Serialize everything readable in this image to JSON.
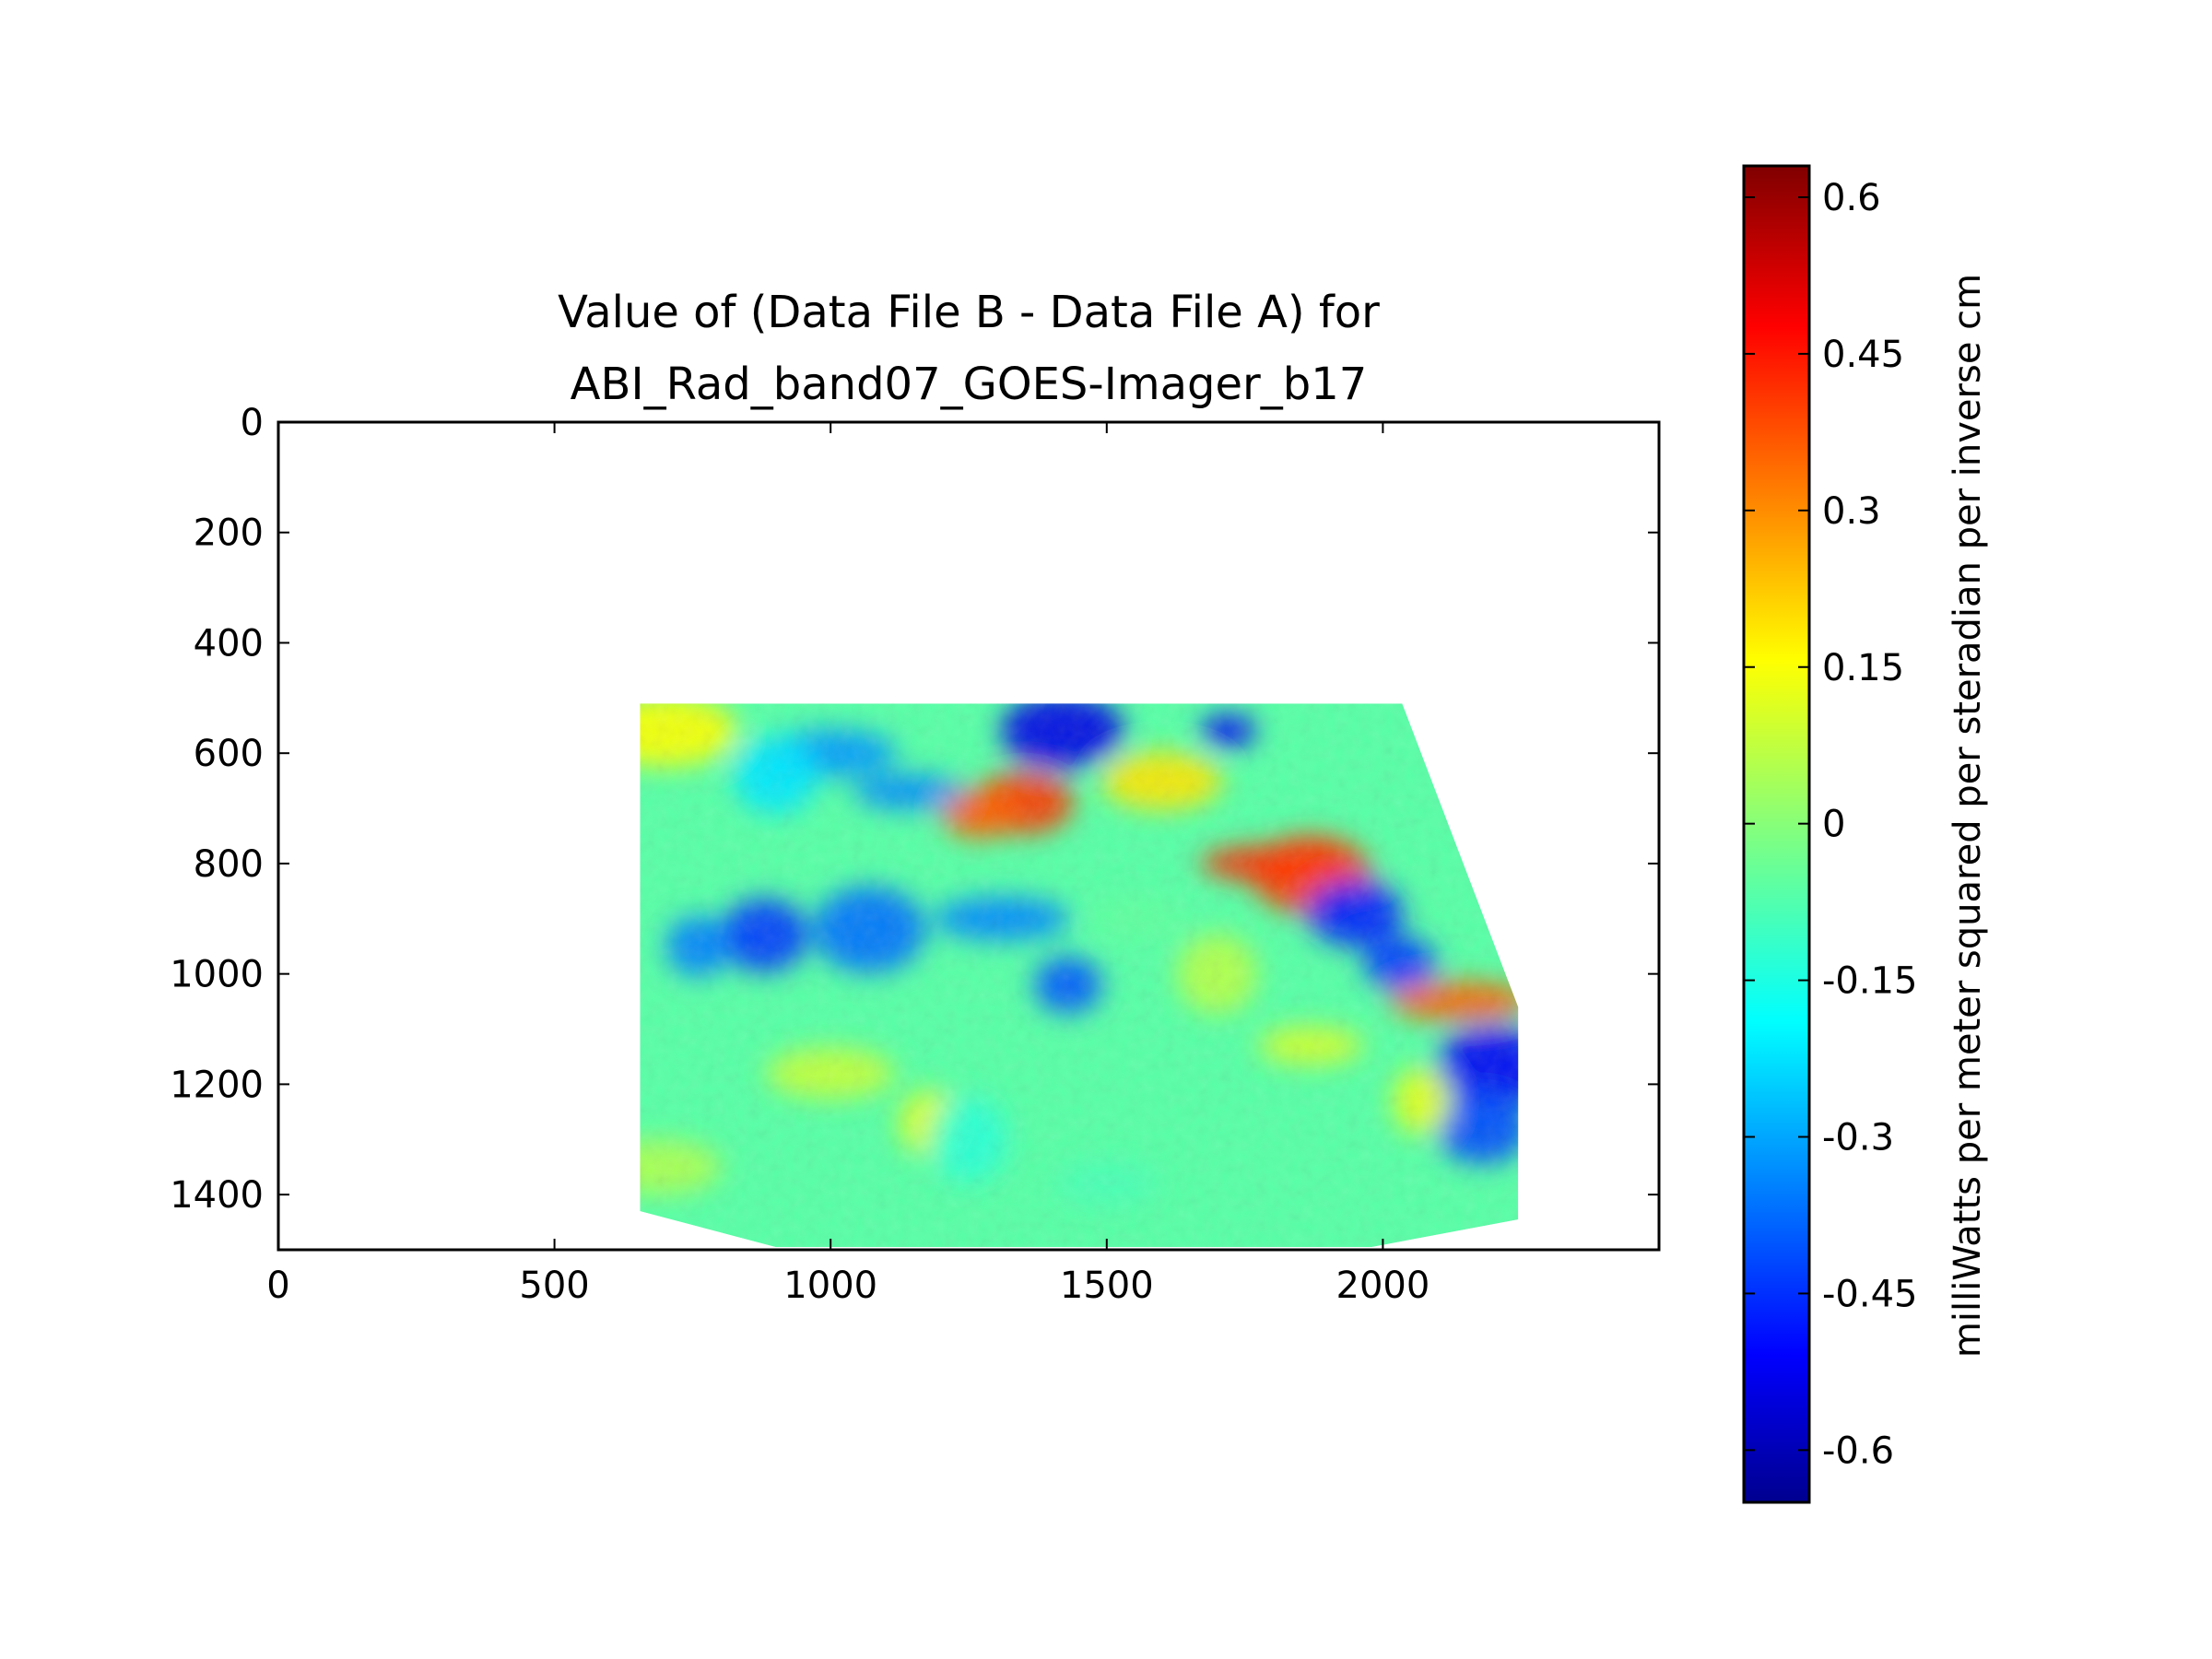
{
  "chart_data": {
    "type": "heatmap",
    "title_line1": "Value of (Data File B - Data File A) for",
    "title_line2": "ABI_Rad_band07_GOES-Imager_b17",
    "xlabel": "",
    "ylabel": "",
    "xlim": [
      0,
      2500
    ],
    "ylim": [
      1500,
      0
    ],
    "x_ticks": [
      0,
      500,
      1000,
      1500,
      2000
    ],
    "y_ticks": [
      0,
      200,
      400,
      600,
      800,
      1000,
      1200,
      1400
    ],
    "x_tick_labels": [
      "0",
      "500",
      "1000",
      "1500",
      "2000"
    ],
    "y_tick_labels": [
      "0",
      "200",
      "400",
      "600",
      "800",
      "1000",
      "1200",
      "1400"
    ],
    "colormap": "jet",
    "grid": false,
    "data_extent": {
      "x_min": 655,
      "x_max": 2245,
      "y_min": 510,
      "y_max": 1495,
      "boundary_polygon": [
        [
          655,
          510
        ],
        [
          2035,
          510
        ],
        [
          2245,
          1060
        ],
        [
          2245,
          1445
        ],
        [
          1980,
          1495
        ],
        [
          900,
          1495
        ],
        [
          655,
          1430
        ]
      ]
    },
    "colorbar": {
      "min": -0.65,
      "max": 0.63,
      "ticks": [
        0.6,
        0.45,
        0.3,
        0.15,
        0,
        -0.15,
        -0.3,
        -0.45,
        -0.6
      ],
      "tick_labels": [
        "0.6",
        "0.45",
        "0.3",
        "0.15",
        "0",
        "-0.15",
        "-0.3",
        "-0.45",
        "-0.6"
      ],
      "label": "milliWatts per meter squared per steradian per inverse cm"
    },
    "features": [
      {
        "x": 1720,
        "y": 560,
        "value": -0.5
      },
      {
        "x": 1420,
        "y": 560,
        "value": -0.52
      },
      {
        "x": 1350,
        "y": 690,
        "value": 0.4
      },
      {
        "x": 1270,
        "y": 710,
        "value": 0.35
      },
      {
        "x": 1800,
        "y": 800,
        "value": 0.42
      },
      {
        "x": 1870,
        "y": 820,
        "value": 0.4
      },
      {
        "x": 1950,
        "y": 890,
        "value": -0.45
      },
      {
        "x": 2030,
        "y": 980,
        "value": -0.42
      },
      {
        "x": 2140,
        "y": 1050,
        "value": 0.35
      },
      {
        "x": 2200,
        "y": 1170,
        "value": -0.5
      },
      {
        "x": 2180,
        "y": 1280,
        "value": -0.4
      },
      {
        "x": 1430,
        "y": 1020,
        "value": -0.38
      },
      {
        "x": 1310,
        "y": 900,
        "value": -0.32
      },
      {
        "x": 1070,
        "y": 920,
        "value": -0.35
      },
      {
        "x": 880,
        "y": 930,
        "value": -0.42
      },
      {
        "x": 760,
        "y": 950,
        "value": -0.33
      },
      {
        "x": 1000,
        "y": 600,
        "value": -0.3
      },
      {
        "x": 1140,
        "y": 670,
        "value": -0.32
      },
      {
        "x": 900,
        "y": 640,
        "value": -0.2
      },
      {
        "x": 1180,
        "y": 1270,
        "value": 0.12
      },
      {
        "x": 1000,
        "y": 1180,
        "value": 0.08
      },
      {
        "x": 1870,
        "y": 1130,
        "value": 0.1
      },
      {
        "x": 1700,
        "y": 1000,
        "value": 0.06
      },
      {
        "x": 2070,
        "y": 1230,
        "value": 0.12
      },
      {
        "x": 690,
        "y": 1350,
        "value": 0.05
      },
      {
        "x": 1500,
        "y": 1380,
        "value": -0.08
      },
      {
        "x": 1250,
        "y": 1300,
        "value": -0.12
      },
      {
        "x": 700,
        "y": 560,
        "value": 0.15
      },
      {
        "x": 1600,
        "y": 650,
        "value": 0.18
      },
      {
        "x": 1560,
        "y": 900,
        "value": -0.05
      }
    ]
  }
}
